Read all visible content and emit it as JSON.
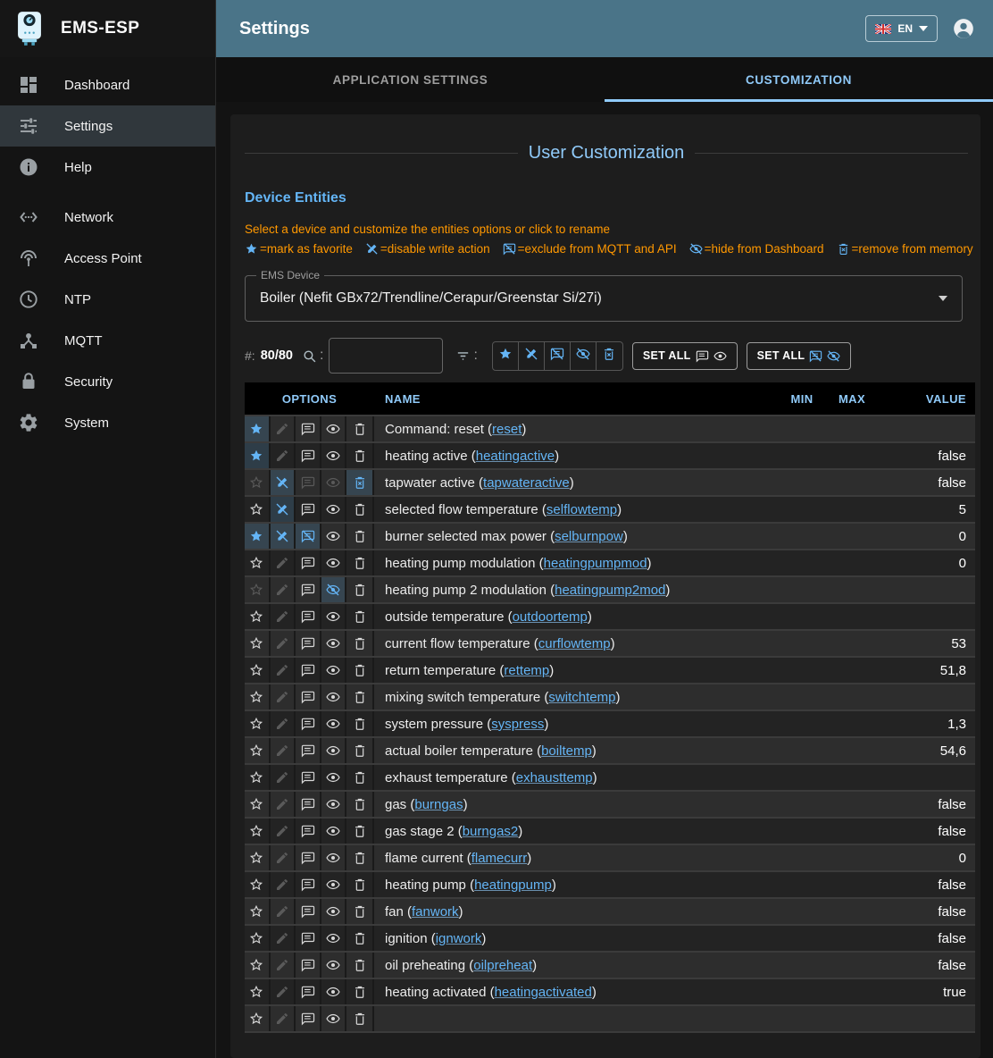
{
  "app": {
    "title": "EMS-ESP"
  },
  "header": {
    "title": "Settings",
    "language": "EN"
  },
  "colors": {
    "accent_blue": "#64b5f6",
    "tab_blue": "#90caf9",
    "warning_orange": "#ff9800",
    "topbar_teal": "#4a7488"
  },
  "sidebar": {
    "items": [
      {
        "label": "Dashboard",
        "icon": "dashboard-icon",
        "active": false,
        "group": 1
      },
      {
        "label": "Settings",
        "icon": "tune-icon",
        "active": true,
        "group": 1
      },
      {
        "label": "Help",
        "icon": "info-icon",
        "active": false,
        "group": 1
      },
      {
        "label": "Network",
        "icon": "ethernet-icon",
        "active": false,
        "group": 2
      },
      {
        "label": "Access Point",
        "icon": "wifi-tethering-icon",
        "active": false,
        "group": 2
      },
      {
        "label": "NTP",
        "icon": "clock-icon",
        "active": false,
        "group": 2
      },
      {
        "label": "MQTT",
        "icon": "hub-icon",
        "active": false,
        "group": 2
      },
      {
        "label": "Security",
        "icon": "lock-icon",
        "active": false,
        "group": 2
      },
      {
        "label": "System",
        "icon": "gear-icon",
        "active": false,
        "group": 2
      }
    ]
  },
  "tabs": [
    {
      "label": "APPLICATION SETTINGS",
      "active": false
    },
    {
      "label": "CUSTOMIZATION",
      "active": true
    }
  ],
  "customization": {
    "section_title": "User Customization",
    "heading": "Device Entities",
    "instruction": "Select a device and customize the entities options or click to rename",
    "legend": [
      {
        "icon": "star-icon",
        "text": "=mark as favorite"
      },
      {
        "icon": "edit-off-icon",
        "text": "=disable write action"
      },
      {
        "icon": "comment-off-icon",
        "text": "=exclude from MQTT and API"
      },
      {
        "icon": "eye-off-icon",
        "text": "=hide from Dashboard"
      },
      {
        "icon": "delete-icon",
        "text": "=remove from memory"
      }
    ],
    "device_select": {
      "label": "EMS Device",
      "value": "Boiler (Nefit GBx72/Trendline/Cerapur/Greenstar Si/27i)"
    },
    "toolbar": {
      "count_label": "#:",
      "count": "80/80",
      "search_value": "",
      "set_all_show_label": "SET ALL",
      "set_all_hide_label": "SET ALL"
    }
  },
  "table": {
    "headers": {
      "options": "OPTIONS",
      "name": "NAME",
      "min": "MIN",
      "max": "MAX",
      "value": "VALUE"
    },
    "rows": [
      {
        "name": "Command: reset",
        "code": "reset",
        "value": "",
        "states": [
          "fav-on",
          "edit-dim",
          "comment",
          "eye",
          "trash"
        ]
      },
      {
        "name": "heating active",
        "code": "heatingactive",
        "value": "false",
        "states": [
          "fav-on",
          "edit-dim",
          "comment",
          "eye",
          "trash"
        ]
      },
      {
        "name": "tapwater active",
        "code": "tapwateractive",
        "value": "false",
        "states": [
          "fav-dim",
          "editoff-on",
          "comment-dim",
          "eye-dim",
          "trashx-on"
        ]
      },
      {
        "name": "selected flow temperature",
        "code": "selflowtemp",
        "value": "5",
        "states": [
          "fav-off",
          "editoff-on",
          "comment",
          "eye",
          "trash"
        ]
      },
      {
        "name": "burner selected max power",
        "code": "selburnpow",
        "value": "0",
        "states": [
          "fav-on",
          "editoff-on",
          "commentoff-on",
          "eye",
          "trash"
        ]
      },
      {
        "name": "heating pump modulation",
        "code": "heatingpumpmod",
        "value": "0",
        "states": [
          "fav-off",
          "edit-dim",
          "comment",
          "eye",
          "trash"
        ]
      },
      {
        "name": "heating pump 2 modulation",
        "code": "heatingpump2mod",
        "value": "",
        "states": [
          "fav-dim",
          "edit-dim",
          "comment",
          "eyeoff-on",
          "trash"
        ]
      },
      {
        "name": "outside temperature",
        "code": "outdoortemp",
        "value": "",
        "states": [
          "fav-off",
          "edit-dim",
          "comment",
          "eye",
          "trash"
        ]
      },
      {
        "name": "current flow temperature",
        "code": "curflowtemp",
        "value": "53",
        "states": [
          "fav-off",
          "edit-dim",
          "comment",
          "eye",
          "trash"
        ]
      },
      {
        "name": "return temperature",
        "code": "rettemp",
        "value": "51,8",
        "states": [
          "fav-off",
          "edit-dim",
          "comment",
          "eye",
          "trash"
        ]
      },
      {
        "name": "mixing switch temperature",
        "code": "switchtemp",
        "value": "",
        "states": [
          "fav-off",
          "edit-dim",
          "comment",
          "eye",
          "trash"
        ]
      },
      {
        "name": "system pressure",
        "code": "syspress",
        "value": "1,3",
        "states": [
          "fav-off",
          "edit-dim",
          "comment",
          "eye",
          "trash"
        ]
      },
      {
        "name": "actual boiler temperature",
        "code": "boiltemp",
        "value": "54,6",
        "states": [
          "fav-off",
          "edit-dim",
          "comment",
          "eye",
          "trash"
        ]
      },
      {
        "name": "exhaust temperature",
        "code": "exhausttemp",
        "value": "",
        "states": [
          "fav-off",
          "edit-dim",
          "comment",
          "eye",
          "trash"
        ]
      },
      {
        "name": "gas",
        "code": "burngas",
        "value": "false",
        "states": [
          "fav-off",
          "edit-dim",
          "comment",
          "eye",
          "trash"
        ]
      },
      {
        "name": "gas stage 2",
        "code": "burngas2",
        "value": "false",
        "states": [
          "fav-off",
          "edit-dim",
          "comment",
          "eye",
          "trash"
        ]
      },
      {
        "name": "flame current",
        "code": "flamecurr",
        "value": "0",
        "states": [
          "fav-off",
          "edit-dim",
          "comment",
          "eye",
          "trash"
        ]
      },
      {
        "name": "heating pump",
        "code": "heatingpump",
        "value": "false",
        "states": [
          "fav-off",
          "edit-dim",
          "comment",
          "eye",
          "trash"
        ]
      },
      {
        "name": "fan",
        "code": "fanwork",
        "value": "false",
        "states": [
          "fav-off",
          "edit-dim",
          "comment",
          "eye",
          "trash"
        ]
      },
      {
        "name": "ignition",
        "code": "ignwork",
        "value": "false",
        "states": [
          "fav-off",
          "edit-dim",
          "comment",
          "eye",
          "trash"
        ]
      },
      {
        "name": "oil preheating",
        "code": "oilpreheat",
        "value": "false",
        "states": [
          "fav-off",
          "edit-dim",
          "comment",
          "eye",
          "trash"
        ]
      },
      {
        "name": "heating activated",
        "code": "heatingactivated",
        "value": "true",
        "states": [
          "fav-off",
          "edit-dim",
          "comment",
          "eye",
          "trash"
        ]
      }
    ],
    "partial_row_visible": true
  }
}
